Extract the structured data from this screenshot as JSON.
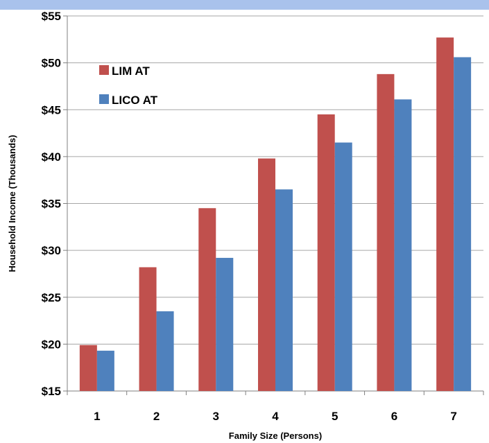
{
  "colors": {
    "band": "#a9c2ec",
    "series_lim": "#c0504d",
    "series_lico": "#4f81bd",
    "grid": "#a6a6a6",
    "axis": "#7f7f7f"
  },
  "chart_data": {
    "type": "bar",
    "title": "",
    "xlabel": "Family Size (Persons)",
    "ylabel": "Household Income (Thousands)",
    "categories": [
      "1",
      "2",
      "3",
      "4",
      "5",
      "6",
      "7"
    ],
    "series": [
      {
        "name": "LIM AT",
        "values": [
          19.9,
          28.2,
          34.5,
          39.8,
          44.5,
          48.8,
          52.7
        ]
      },
      {
        "name": "LICO AT",
        "values": [
          19.3,
          23.5,
          29.2,
          36.5,
          41.5,
          46.1,
          50.6
        ]
      }
    ],
    "ylim": [
      15,
      55
    ],
    "yticks": [
      15,
      20,
      25,
      30,
      35,
      40,
      45,
      50,
      55
    ],
    "ytick_labels": [
      "$15",
      "$20",
      "$25",
      "$30",
      "$35",
      "$40",
      "$45",
      "$50",
      "$55"
    ],
    "grid": "horizontal",
    "legend_position": "top-left"
  }
}
